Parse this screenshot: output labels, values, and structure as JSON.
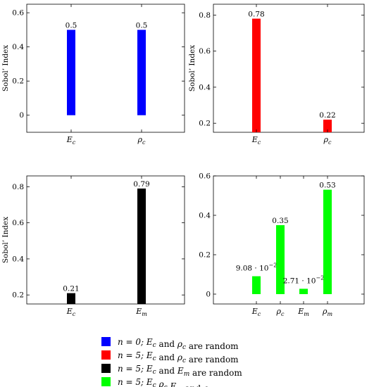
{
  "chart_data": [
    {
      "type": "bar",
      "ylabel": "Sobol’ Index",
      "categories": [
        "E_c",
        "ρ_c"
      ],
      "values": [
        0.5,
        0.5
      ],
      "value_labels": [
        "0.5",
        "0.5"
      ],
      "ylim": [
        -0.1,
        0.65
      ],
      "yticks": [
        0,
        0.2,
        0.4,
        0.6
      ],
      "ytick_labels": [
        "0",
        "0.2",
        "0.4",
        "0.6"
      ],
      "color": "#0000ff",
      "legend_index": 0
    },
    {
      "type": "bar",
      "ylabel": "Sobol’ Index",
      "categories": [
        "E_c",
        "ρ_c"
      ],
      "values": [
        0.78,
        0.22
      ],
      "value_labels": [
        "0.78",
        "0.22"
      ],
      "ylim": [
        0.15,
        0.86
      ],
      "yticks": [
        0.2,
        0.4,
        0.6,
        0.8
      ],
      "ytick_labels": [
        "0.2",
        "0.4",
        "0.6",
        "0.8"
      ],
      "color": "#ff0000",
      "legend_index": 1
    },
    {
      "type": "bar",
      "ylabel": "Sobol’ Index",
      "categories": [
        "E_c",
        "E_m"
      ],
      "values": [
        0.21,
        0.79
      ],
      "value_labels": [
        "0.21",
        "0.79"
      ],
      "ylim": [
        0.15,
        0.86
      ],
      "yticks": [
        0.2,
        0.4,
        0.6,
        0.8
      ],
      "ytick_labels": [
        "0.2",
        "0.4",
        "0.6",
        "0.8"
      ],
      "color": "#000000",
      "legend_index": 2
    },
    {
      "type": "bar",
      "ylabel": "",
      "categories": [
        "E_c",
        "ρ_c",
        "E_m",
        "ρ_m"
      ],
      "values": [
        0.0908,
        0.35,
        0.0271,
        0.53
      ],
      "value_labels": [
        {
          "mant": "9.08 · 10",
          "exp": "−2"
        },
        "0.35",
        {
          "mant": "2.71 · 10",
          "exp": "−2"
        },
        "0.53"
      ],
      "ylim": [
        -0.05,
        0.6
      ],
      "yticks": [
        0,
        0.2,
        0.4,
        0.6
      ],
      "ytick_labels": [
        "0",
        "0.2",
        "0.4",
        "0.6"
      ],
      "color": "#00ff00",
      "legend_index": 3
    }
  ],
  "legend": [
    {
      "color": "#0000ff",
      "parts": [
        [
          "n = 0; ",
          "i"
        ],
        [
          "E",
          "i"
        ],
        [
          "c",
          "sub"
        ],
        [
          " and ",
          "n"
        ],
        [
          "ρ",
          "i"
        ],
        [
          "c",
          "sub"
        ],
        [
          " are random",
          "n"
        ]
      ]
    },
    {
      "color": "#ff0000",
      "parts": [
        [
          "n = 5; ",
          "i"
        ],
        [
          "E",
          "i"
        ],
        [
          "c",
          "sub"
        ],
        [
          " and ",
          "n"
        ],
        [
          "ρ",
          "i"
        ],
        [
          "c",
          "sub"
        ],
        [
          " are random",
          "n"
        ]
      ]
    },
    {
      "color": "#000000",
      "parts": [
        [
          "n = 5; ",
          "i"
        ],
        [
          "E",
          "i"
        ],
        [
          "c",
          "sub"
        ],
        [
          " and ",
          "n"
        ],
        [
          "E",
          "i"
        ],
        [
          "m",
          "sub"
        ],
        [
          " are random",
          "n"
        ]
      ]
    },
    {
      "color": "#00ff00",
      "parts": [
        [
          "n = 5; ",
          "i"
        ],
        [
          "E",
          "i"
        ],
        [
          "c",
          "sub"
        ],
        [
          " ",
          "n"
        ],
        [
          "ρ",
          "i"
        ],
        [
          "c",
          "sub"
        ],
        [
          " ",
          "n"
        ],
        [
          "E",
          "i"
        ],
        [
          "m",
          "sub"
        ],
        [
          " and ",
          "n"
        ],
        [
          "ρ",
          "i"
        ],
        [
          "m",
          "sub"
        ],
        [
          " are random",
          "n"
        ]
      ]
    }
  ]
}
